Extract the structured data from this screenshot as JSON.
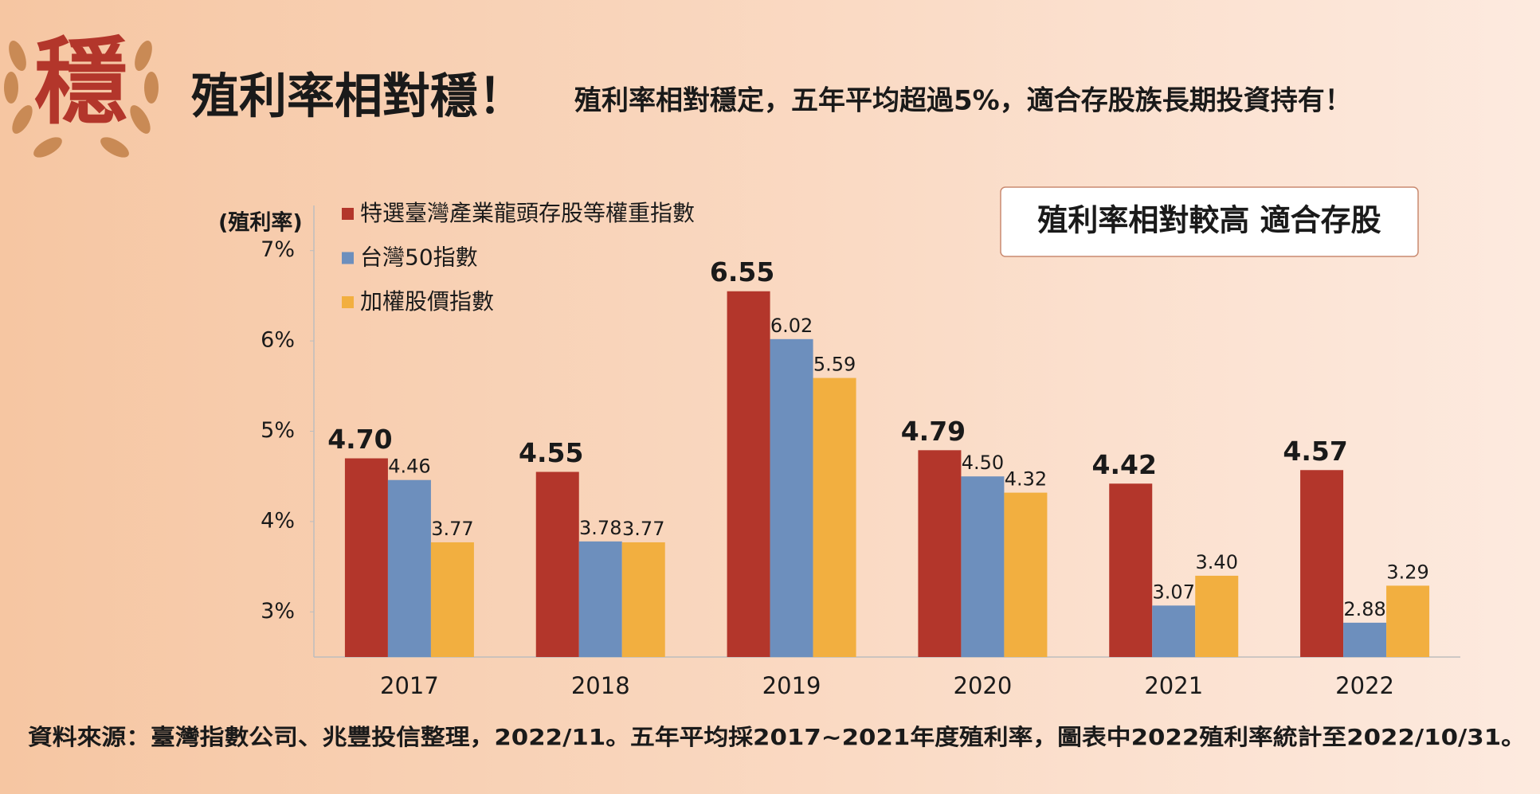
{
  "logo_text": "穩",
  "title": "殖利率相對穩！",
  "subtitle": "殖利率相對穩定，五年平均超過5%，適合存股族長期投資持有！",
  "callout": "殖利率相對較高 適合存股",
  "footnote": "資料來源：臺灣指數公司、兆豐投信整理，2022/11。五年平均採2017~2021年度殖利率，圖表中2022殖利率統計至2022/10/31。",
  "chart_data": {
    "type": "bar",
    "y_axis_label": "(殖利率)",
    "categories": [
      "2017",
      "2018",
      "2019",
      "2020",
      "2021",
      "2022"
    ],
    "series": [
      {
        "name": "特選臺灣產業龍頭存股等權重指數",
        "color": "#b3362b",
        "values": [
          4.7,
          4.55,
          6.55,
          4.79,
          4.42,
          4.57
        ],
        "value_labels": [
          "4.70",
          "4.55",
          "6.55",
          "4.79",
          "4.42",
          "4.57"
        ]
      },
      {
        "name": "台灣50指數",
        "color": "#6d8fbd",
        "values": [
          4.46,
          3.78,
          6.02,
          4.5,
          3.07,
          2.88
        ],
        "value_labels": [
          "4.46",
          "3.78",
          "6.02",
          "4.50",
          "3.07",
          "2.88"
        ]
      },
      {
        "name": "加權股價指數",
        "color": "#f2af40",
        "values": [
          3.77,
          3.77,
          5.59,
          4.32,
          3.4,
          3.29
        ],
        "value_labels": [
          "3.77",
          "3.77",
          "5.59",
          "4.32",
          "3.40",
          "3.29"
        ]
      }
    ],
    "ylim": [
      2.5,
      7.5
    ],
    "yticks": [
      {
        "value": 3,
        "label": "3%"
      },
      {
        "value": 4,
        "label": "4%"
      },
      {
        "value": 5,
        "label": "5%"
      },
      {
        "value": 6,
        "label": "6%"
      },
      {
        "value": 7,
        "label": "7%"
      }
    ],
    "grid": false,
    "legend": "top-left"
  }
}
